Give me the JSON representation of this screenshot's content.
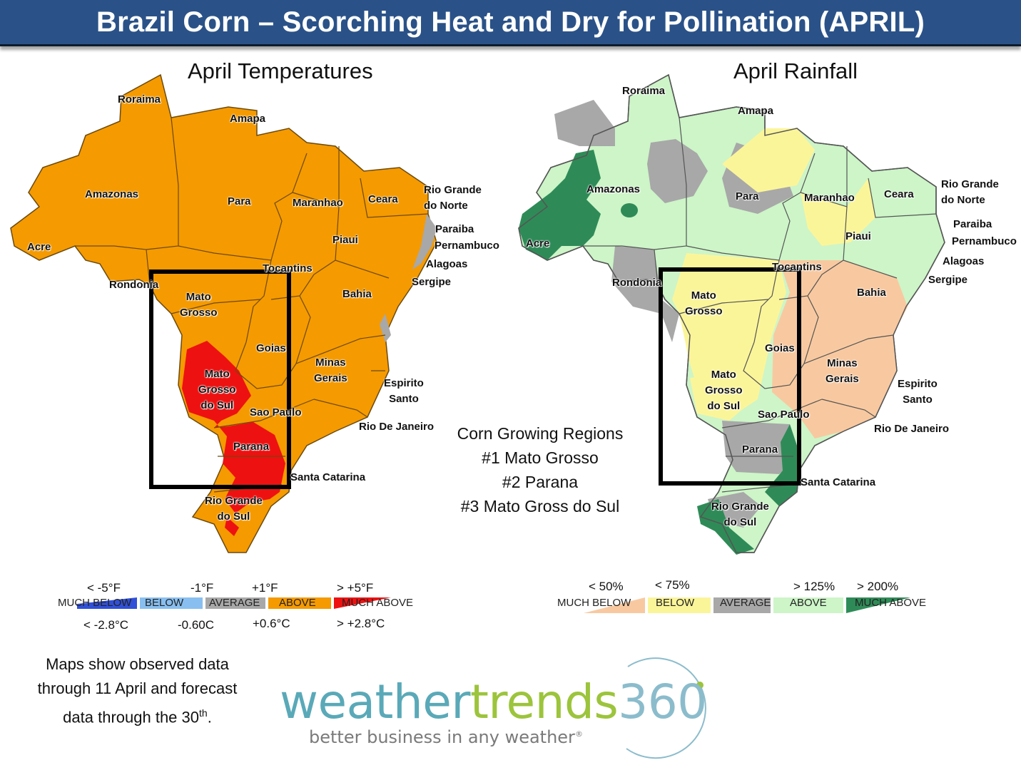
{
  "title": "Brazil Corn – Scorching Heat and Dry for Pollination (APRIL)",
  "temp_map": {
    "title": "April Temperatures",
    "states": [
      {
        "name": "Roraima"
      },
      {
        "name": "Amapa"
      },
      {
        "name": "Amazonas"
      },
      {
        "name": "Para"
      },
      {
        "name": "Maranhao"
      },
      {
        "name": "Ceara"
      },
      {
        "name": "Rio Grande\ndo Norte"
      },
      {
        "name": "Paraiba"
      },
      {
        "name": "Pernambuco"
      },
      {
        "name": "Alagoas"
      },
      {
        "name": "Sergipe"
      },
      {
        "name": "Piaui"
      },
      {
        "name": "Acre"
      },
      {
        "name": "Tocantins"
      },
      {
        "name": "Rondonia"
      },
      {
        "name": "Bahia"
      },
      {
        "name": "Mato\nGrosso"
      },
      {
        "name": "Goias"
      },
      {
        "name": "Minas\nGerais"
      },
      {
        "name": "Mato\nGrosso\ndo Sul"
      },
      {
        "name": "Espirito\nSanto"
      },
      {
        "name": "Sao Paulo"
      },
      {
        "name": "Rio De Janeiro"
      },
      {
        "name": "Parana"
      },
      {
        "name": "Santa Catarina"
      },
      {
        "name": "Rio Grande\ndo Sul"
      }
    ],
    "legend": {
      "top_ticks": [
        "< -5°F",
        "-1°F",
        "+1°F",
        "> +5°F"
      ],
      "bottom_ticks": [
        "< -2.8°C",
        "-0.60C",
        "+0.6°C",
        "> +2.8°C"
      ],
      "categories": [
        "MUCH BELOW",
        "BELOW",
        "AVERAGE",
        "ABOVE",
        "MUCH ABOVE"
      ],
      "colors": [
        "#3050d8",
        "#88bff0",
        "#a8a8a8",
        "#f59a00",
        "#ee1111"
      ]
    }
  },
  "rain_map": {
    "title": "April Rainfall",
    "states": [
      {
        "name": "Roraima"
      },
      {
        "name": "Amapa"
      },
      {
        "name": "Amazonas"
      },
      {
        "name": "Para"
      },
      {
        "name": "Maranhao"
      },
      {
        "name": "Ceara"
      },
      {
        "name": "Rio Grande\ndo Norte"
      },
      {
        "name": "Paraiba"
      },
      {
        "name": "Pernambuco"
      },
      {
        "name": "Alagoas"
      },
      {
        "name": "Sergipe"
      },
      {
        "name": "Piaui"
      },
      {
        "name": "Acre"
      },
      {
        "name": "Tocantins"
      },
      {
        "name": "Rondonia"
      },
      {
        "name": "Bahia"
      },
      {
        "name": "Mato\nGrosso"
      },
      {
        "name": "Goias"
      },
      {
        "name": "Minas\nGerais"
      },
      {
        "name": "Mato\nGrosso\ndo Sul"
      },
      {
        "name": "Espirito\nSanto"
      },
      {
        "name": "Sao Paulo"
      },
      {
        "name": "Rio De Janeiro"
      },
      {
        "name": "Parana"
      },
      {
        "name": "Santa Catarina"
      },
      {
        "name": "Rio Grande\ndo Sul"
      }
    ],
    "legend": {
      "top_ticks": [
        "< 50%",
        "< 75%",
        "> 125%",
        "> 200%"
      ],
      "categories": [
        "MUCH BELOW",
        "BELOW",
        "AVERAGE",
        "ABOVE",
        "MUCH ABOVE"
      ],
      "colors": [
        "#f8c9a0",
        "#fbf59a",
        "#a8a8a8",
        "#cdf5c8",
        "#2e8b57"
      ]
    }
  },
  "regions": {
    "heading": "Corn Growing Regions",
    "items": [
      "#1 Mato Grosso",
      "#2 Parana",
      "#3 Mato Gross do Sul"
    ]
  },
  "notes": {
    "line1": "Maps show observed data",
    "line2": "through 11 April and forecast",
    "line3_pre": "data through the 30",
    "line3_sup": "th",
    "line3_post": "."
  },
  "logo": {
    "word_a": "weather",
    "word_b": "trends",
    "word_c": "360",
    "tagline": "better business in any weather",
    "mark": "®",
    "colors": [
      "#5aa9b8",
      "#9cc43c",
      "#8bbccc"
    ]
  }
}
